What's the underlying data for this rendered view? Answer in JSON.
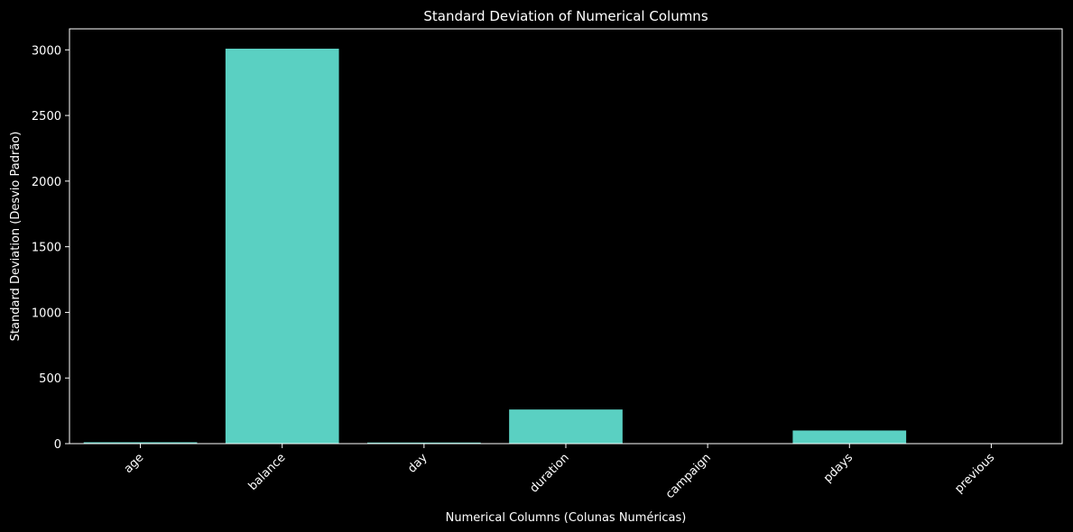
{
  "chart_data": {
    "type": "bar",
    "title": "Standard Deviation of Numerical Columns",
    "xlabel": "Numerical Columns (Colunas Numéricas)",
    "ylabel": "Standard Deviation (Desvio Padrão)",
    "categories": [
      "age",
      "balance",
      "day",
      "duration",
      "campaign",
      "pdays",
      "previous"
    ],
    "values": [
      10.6,
      3009,
      8.3,
      260,
      3.1,
      100,
      2.3
    ],
    "ylim": [
      0,
      3160
    ],
    "yticks": [
      0,
      500,
      1000,
      1500,
      2000,
      2500,
      3000
    ],
    "grid": false,
    "bar_color": "#5ad0c2",
    "background": "#000000",
    "axis_color": "#ffffff"
  }
}
